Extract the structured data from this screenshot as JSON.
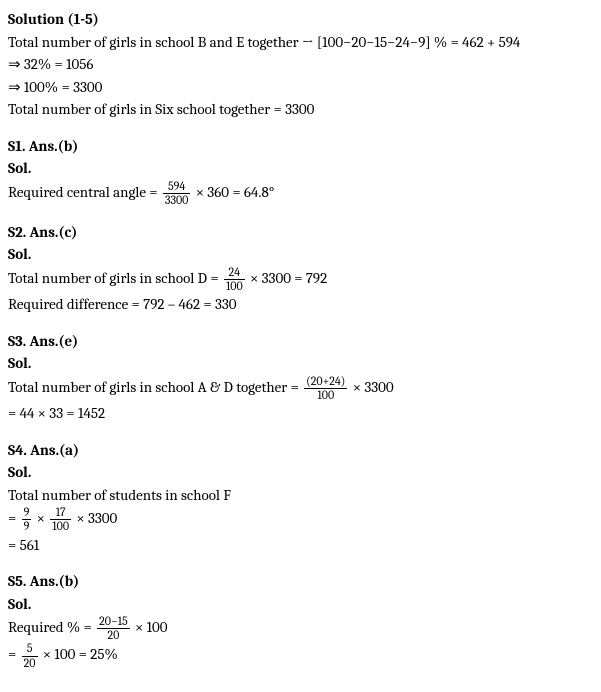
{
  "header": {
    "title": "Solution (1-5)",
    "line1_pre": "Total number of girls in school B and E together → [100−20−15−24−9] % = 462 + 594",
    "line2": "⇒ 32% = 1056",
    "line3": "⇒ 100% = 3300",
    "line4": "Total number of girls in Six school together = 3300"
  },
  "s1": {
    "heading": "S1. Ans.(b)",
    "sol": "Sol.",
    "label": "Required central angle = ",
    "num": "594",
    "den": "3300",
    "tail": " × 360 = 64.8°"
  },
  "s2": {
    "heading": "S2. Ans.(c)",
    "sol": "Sol.",
    "label1": "Total number of girls in school D = ",
    "num1": "24",
    "den1": "100",
    "tail1": " × 3300 = 792",
    "line2": "Required difference = 792 – 462 = 330"
  },
  "s3": {
    "heading": "S3. Ans.(e)",
    "sol": "Sol.",
    "label1": "Total number of girls in school A & D together = ",
    "num1": "(20+24)",
    "den1": "100",
    "tail1": " × 3300",
    "line2": "= 44 × 33 = 1452"
  },
  "s4": {
    "heading": "S4. Ans.(a)",
    "sol": "Sol.",
    "line1": "Total number of students in school F",
    "eq_pre": "= ",
    "numA": "9",
    "denA": "9",
    "mid": " × ",
    "numB": "17",
    "denB": "100",
    "tail": " × 3300",
    "line3": "= 561"
  },
  "s5": {
    "heading": "S5. Ans.(b)",
    "sol": "Sol.",
    "label1": "Required % = ",
    "num1": "20−15",
    "den1": "20",
    "tail1": " × 100",
    "eq_pre": "= ",
    "num2": "5",
    "den2": "20",
    "tail2": " × 100 = 25%"
  }
}
